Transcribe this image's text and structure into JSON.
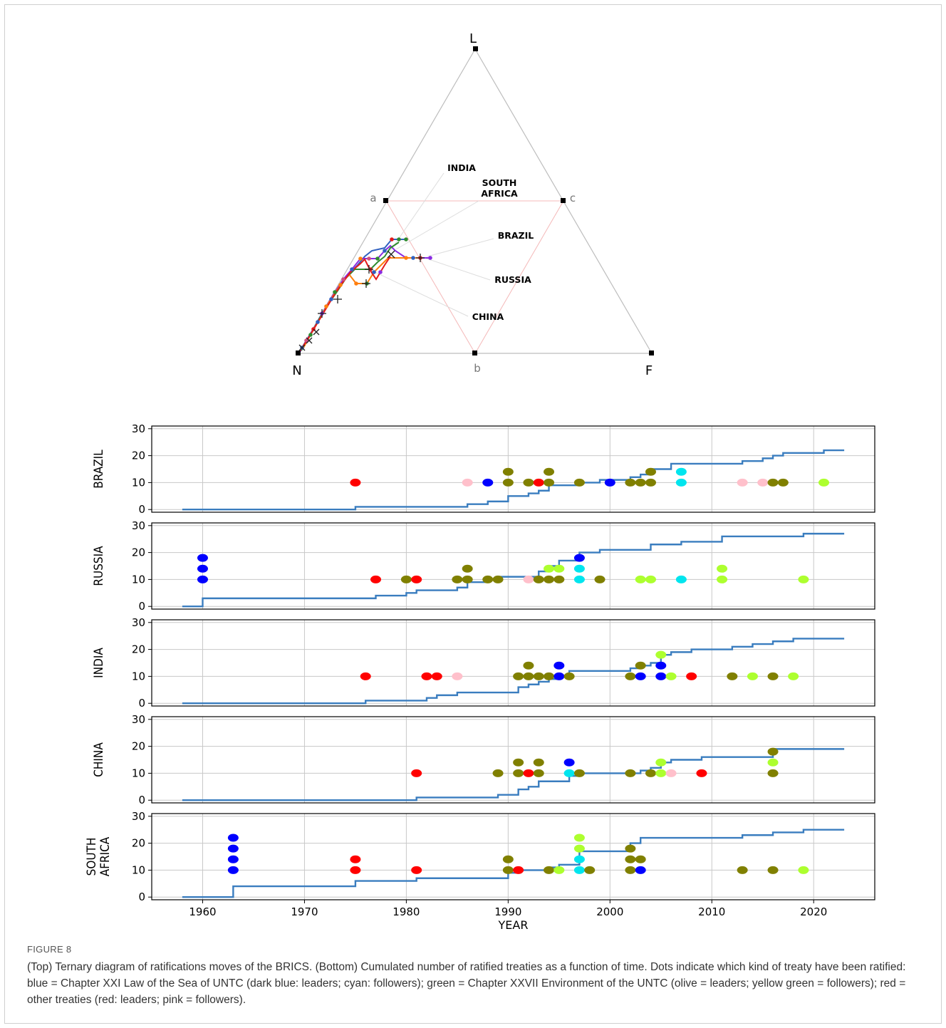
{
  "figure": {
    "label": "FIGURE 8",
    "caption": "(Top) Ternary diagram of ratifications moves of the BRICS. (Bottom) Cumulated number of ratified treaties as a function of time. Dots indicate which kind of treaty have been ratified: blue = Chapter XXI Law of the Sea of UNTC (dark blue: leaders; cyan: followers); green = Chapter XXVII Environment of the UNTC (olive = leaders; yellow green = followers); red = other treaties (red: leaders; pink = followers)."
  },
  "ternary": {
    "vertices": {
      "top": "L",
      "left": "N",
      "right": "F"
    },
    "midpoints": {
      "left": "a",
      "right": "c",
      "bottom": "b"
    },
    "labels": [
      "INDIA",
      "SOUTH AFRICA",
      "BRAZIL",
      "RUSSIA",
      "CHINA"
    ]
  },
  "chart_data": [
    {
      "type": "line",
      "ylabel": "BRAZIL",
      "xlim": [
        1955,
        2026
      ],
      "ylim": [
        -1,
        31
      ],
      "yticks": [
        0,
        10,
        20,
        30
      ],
      "steps": [
        [
          1958,
          0
        ],
        [
          1975,
          1
        ],
        [
          1986,
          2
        ],
        [
          1988,
          3
        ],
        [
          1990,
          5
        ],
        [
          1992,
          6
        ],
        [
          1993,
          7
        ],
        [
          1994,
          9
        ],
        [
          1997,
          10
        ],
        [
          1999,
          11
        ],
        [
          2001,
          11
        ],
        [
          2002,
          12
        ],
        [
          2003,
          13
        ],
        [
          2004,
          15
        ],
        [
          2006,
          17
        ],
        [
          2013,
          18
        ],
        [
          2015,
          19
        ],
        [
          2016,
          20
        ],
        [
          2017,
          21
        ],
        [
          2021,
          22
        ],
        [
          2023,
          22
        ]
      ],
      "dots": [
        {
          "year": 1975,
          "y": 10,
          "color": "red"
        },
        {
          "year": 1986,
          "y": 10,
          "color": "pink"
        },
        {
          "year": 1988,
          "y": 10,
          "color": "blue"
        },
        {
          "year": 1990,
          "y": 10,
          "color": "olive"
        },
        {
          "year": 1990,
          "y": 14,
          "color": "olive"
        },
        {
          "year": 1992,
          "y": 10,
          "color": "olive"
        },
        {
          "year": 1993,
          "y": 10,
          "color": "red"
        },
        {
          "year": 1994,
          "y": 10,
          "color": "olive"
        },
        {
          "year": 1994,
          "y": 14,
          "color": "olive"
        },
        {
          "year": 1997,
          "y": 10,
          "color": "olive"
        },
        {
          "year": 2000,
          "y": 10,
          "color": "blue"
        },
        {
          "year": 2002,
          "y": 10,
          "color": "olive"
        },
        {
          "year": 2003,
          "y": 10,
          "color": "olive"
        },
        {
          "year": 2004,
          "y": 10,
          "color": "olive"
        },
        {
          "year": 2004,
          "y": 14,
          "color": "olive"
        },
        {
          "year": 2007,
          "y": 10,
          "color": "cyan"
        },
        {
          "year": 2007,
          "y": 14,
          "color": "cyan"
        },
        {
          "year": 2013,
          "y": 10,
          "color": "pink"
        },
        {
          "year": 2015,
          "y": 10,
          "color": "pink"
        },
        {
          "year": 2016,
          "y": 10,
          "color": "olive"
        },
        {
          "year": 2017,
          "y": 10,
          "color": "olive"
        },
        {
          "year": 2021,
          "y": 10,
          "color": "yellowgreen"
        }
      ]
    },
    {
      "type": "line",
      "ylabel": "RUSSIA",
      "xlim": [
        1955,
        2026
      ],
      "ylim": [
        -1,
        31
      ],
      "yticks": [
        0,
        10,
        20,
        30
      ],
      "steps": [
        [
          1958,
          0
        ],
        [
          1959,
          0
        ],
        [
          1960,
          3
        ],
        [
          1976,
          3
        ],
        [
          1977,
          4
        ],
        [
          1979,
          4
        ],
        [
          1980,
          5
        ],
        [
          1981,
          6
        ],
        [
          1984,
          6
        ],
        [
          1985,
          7
        ],
        [
          1986,
          9
        ],
        [
          1988,
          10
        ],
        [
          1989,
          11
        ],
        [
          1991,
          11
        ],
        [
          1993,
          13
        ],
        [
          1994,
          15
        ],
        [
          1995,
          17
        ],
        [
          1996,
          17
        ],
        [
          1997,
          20
        ],
        [
          1999,
          21
        ],
        [
          2002,
          21
        ],
        [
          2004,
          23
        ],
        [
          2006,
          23
        ],
        [
          2007,
          24
        ],
        [
          2010,
          24
        ],
        [
          2011,
          26
        ],
        [
          2018,
          26
        ],
        [
          2019,
          27
        ],
        [
          2023,
          27
        ]
      ],
      "dots": [
        {
          "year": 1960,
          "y": 10,
          "color": "blue"
        },
        {
          "year": 1960,
          "y": 14,
          "color": "blue"
        },
        {
          "year": 1960,
          "y": 18,
          "color": "blue"
        },
        {
          "year": 1977,
          "y": 10,
          "color": "red"
        },
        {
          "year": 1980,
          "y": 10,
          "color": "olive"
        },
        {
          "year": 1981,
          "y": 10,
          "color": "red"
        },
        {
          "year": 1985,
          "y": 10,
          "color": "olive"
        },
        {
          "year": 1986,
          "y": 10,
          "color": "olive"
        },
        {
          "year": 1986,
          "y": 14,
          "color": "olive"
        },
        {
          "year": 1988,
          "y": 10,
          "color": "olive"
        },
        {
          "year": 1989,
          "y": 10,
          "color": "olive"
        },
        {
          "year": 1992,
          "y": 10,
          "color": "pink"
        },
        {
          "year": 1993,
          "y": 10,
          "color": "olive"
        },
        {
          "year": 1994,
          "y": 10,
          "color": "olive"
        },
        {
          "year": 1995,
          "y": 10,
          "color": "olive"
        },
        {
          "year": 1994,
          "y": 14,
          "color": "yellowgreen"
        },
        {
          "year": 1995,
          "y": 14,
          "color": "yellowgreen"
        },
        {
          "year": 1997,
          "y": 10,
          "color": "cyan"
        },
        {
          "year": 1997,
          "y": 14,
          "color": "cyan"
        },
        {
          "year": 1997,
          "y": 18,
          "color": "blue"
        },
        {
          "year": 1999,
          "y": 10,
          "color": "olive"
        },
        {
          "year": 2003,
          "y": 10,
          "color": "yellowgreen"
        },
        {
          "year": 2004,
          "y": 10,
          "color": "yellowgreen"
        },
        {
          "year": 2007,
          "y": 10,
          "color": "cyan"
        },
        {
          "year": 2011,
          "y": 10,
          "color": "yellowgreen"
        },
        {
          "year": 2011,
          "y": 14,
          "color": "yellowgreen"
        },
        {
          "year": 2019,
          "y": 10,
          "color": "yellowgreen"
        }
      ]
    },
    {
      "type": "line",
      "ylabel": "INDIA",
      "xlim": [
        1955,
        2026
      ],
      "ylim": [
        -1,
        31
      ],
      "yticks": [
        0,
        10,
        20,
        30
      ],
      "steps": [
        [
          1958,
          0
        ],
        [
          1975,
          0
        ],
        [
          1976,
          1
        ],
        [
          1981,
          1
        ],
        [
          1982,
          2
        ],
        [
          1983,
          3
        ],
        [
          1984,
          3
        ],
        [
          1985,
          4
        ],
        [
          1990,
          4
        ],
        [
          1991,
          6
        ],
        [
          1992,
          7
        ],
        [
          1993,
          8
        ],
        [
          1994,
          9
        ],
        [
          1995,
          10
        ],
        [
          1996,
          12
        ],
        [
          2001,
          12
        ],
        [
          2002,
          13
        ],
        [
          2003,
          14
        ],
        [
          2004,
          15
        ],
        [
          2005,
          18
        ],
        [
          2006,
          19
        ],
        [
          2007,
          19
        ],
        [
          2008,
          20
        ],
        [
          2011,
          20
        ],
        [
          2012,
          21
        ],
        [
          2013,
          21
        ],
        [
          2014,
          22
        ],
        [
          2015,
          22
        ],
        [
          2016,
          23
        ],
        [
          2017,
          23
        ],
        [
          2018,
          24
        ],
        [
          2023,
          24
        ]
      ],
      "dots": [
        {
          "year": 1976,
          "y": 10,
          "color": "red"
        },
        {
          "year": 1982,
          "y": 10,
          "color": "red"
        },
        {
          "year": 1983,
          "y": 10,
          "color": "red"
        },
        {
          "year": 1985,
          "y": 10,
          "color": "pink"
        },
        {
          "year": 1991,
          "y": 10,
          "color": "olive"
        },
        {
          "year": 1992,
          "y": 10,
          "color": "olive"
        },
        {
          "year": 1992,
          "y": 14,
          "color": "olive"
        },
        {
          "year": 1993,
          "y": 10,
          "color": "olive"
        },
        {
          "year": 1994,
          "y": 10,
          "color": "olive"
        },
        {
          "year": 1995,
          "y": 10,
          "color": "blue"
        },
        {
          "year": 1995,
          "y": 14,
          "color": "blue"
        },
        {
          "year": 1996,
          "y": 10,
          "color": "olive"
        },
        {
          "year": 2002,
          "y": 10,
          "color": "olive"
        },
        {
          "year": 2003,
          "y": 10,
          "color": "blue"
        },
        {
          "year": 2003,
          "y": 14,
          "color": "olive"
        },
        {
          "year": 2005,
          "y": 10,
          "color": "blue"
        },
        {
          "year": 2005,
          "y": 14,
          "color": "blue"
        },
        {
          "year": 2005,
          "y": 18,
          "color": "yellowgreen"
        },
        {
          "year": 2006,
          "y": 10,
          "color": "yellowgreen"
        },
        {
          "year": 2008,
          "y": 10,
          "color": "red"
        },
        {
          "year": 2012,
          "y": 10,
          "color": "olive"
        },
        {
          "year": 2014,
          "y": 10,
          "color": "yellowgreen"
        },
        {
          "year": 2016,
          "y": 10,
          "color": "olive"
        },
        {
          "year": 2018,
          "y": 10,
          "color": "yellowgreen"
        }
      ]
    },
    {
      "type": "line",
      "ylabel": "CHINA",
      "xlim": [
        1955,
        2026
      ],
      "ylim": [
        -1,
        31
      ],
      "yticks": [
        0,
        10,
        20,
        30
      ],
      "steps": [
        [
          1958,
          0
        ],
        [
          1980,
          0
        ],
        [
          1981,
          1
        ],
        [
          1988,
          1
        ],
        [
          1989,
          2
        ],
        [
          1990,
          2
        ],
        [
          1991,
          4
        ],
        [
          1992,
          5
        ],
        [
          1993,
          7
        ],
        [
          1995,
          7
        ],
        [
          1996,
          9
        ],
        [
          1997,
          10
        ],
        [
          2002,
          10
        ],
        [
          2003,
          11
        ],
        [
          2004,
          12
        ],
        [
          2005,
          14
        ],
        [
          2006,
          15
        ],
        [
          2008,
          15
        ],
        [
          2009,
          16
        ],
        [
          2015,
          16
        ],
        [
          2016,
          19
        ],
        [
          2023,
          19
        ]
      ],
      "dots": [
        {
          "year": 1981,
          "y": 10,
          "color": "red"
        },
        {
          "year": 1989,
          "y": 10,
          "color": "olive"
        },
        {
          "year": 1991,
          "y": 10,
          "color": "olive"
        },
        {
          "year": 1991,
          "y": 14,
          "color": "olive"
        },
        {
          "year": 1992,
          "y": 10,
          "color": "red"
        },
        {
          "year": 1993,
          "y": 10,
          "color": "olive"
        },
        {
          "year": 1993,
          "y": 14,
          "color": "olive"
        },
        {
          "year": 1996,
          "y": 10,
          "color": "cyan"
        },
        {
          "year": 1996,
          "y": 14,
          "color": "blue"
        },
        {
          "year": 1997,
          "y": 10,
          "color": "olive"
        },
        {
          "year": 2002,
          "y": 10,
          "color": "olive"
        },
        {
          "year": 2004,
          "y": 10,
          "color": "olive"
        },
        {
          "year": 2005,
          "y": 10,
          "color": "yellowgreen"
        },
        {
          "year": 2005,
          "y": 14,
          "color": "yellowgreen"
        },
        {
          "year": 2006,
          "y": 10,
          "color": "pink"
        },
        {
          "year": 2009,
          "y": 10,
          "color": "red"
        },
        {
          "year": 2016,
          "y": 10,
          "color": "olive"
        },
        {
          "year": 2016,
          "y": 14,
          "color": "yellowgreen"
        },
        {
          "year": 2016,
          "y": 18,
          "color": "olive"
        }
      ]
    },
    {
      "type": "line",
      "ylabel": "SOUTH AFRICA",
      "xlabel": "YEAR",
      "xlim": [
        1955,
        2026
      ],
      "ylim": [
        -1,
        31
      ],
      "yticks": [
        0,
        10,
        20,
        30
      ],
      "xticks": [
        1960,
        1970,
        1980,
        1990,
        2000,
        2010,
        2020
      ],
      "steps": [
        [
          1958,
          0
        ],
        [
          1962,
          0
        ],
        [
          1963,
          4
        ],
        [
          1974,
          4
        ],
        [
          1975,
          6
        ],
        [
          1980,
          6
        ],
        [
          1981,
          7
        ],
        [
          1989,
          7
        ],
        [
          1990,
          9
        ],
        [
          1991,
          10
        ],
        [
          1993,
          10
        ],
        [
          1994,
          11
        ],
        [
          1995,
          12
        ],
        [
          1996,
          12
        ],
        [
          1997,
          17
        ],
        [
          2001,
          17
        ],
        [
          2002,
          20
        ],
        [
          2003,
          22
        ],
        [
          2012,
          22
        ],
        [
          2013,
          23
        ],
        [
          2015,
          23
        ],
        [
          2016,
          24
        ],
        [
          2018,
          24
        ],
        [
          2019,
          25
        ],
        [
          2023,
          25
        ]
      ],
      "dots": [
        {
          "year": 1963,
          "y": 10,
          "color": "blue"
        },
        {
          "year": 1963,
          "y": 14,
          "color": "blue"
        },
        {
          "year": 1963,
          "y": 18,
          "color": "blue"
        },
        {
          "year": 1963,
          "y": 22,
          "color": "blue"
        },
        {
          "year": 1975,
          "y": 10,
          "color": "red"
        },
        {
          "year": 1975,
          "y": 14,
          "color": "red"
        },
        {
          "year": 1981,
          "y": 10,
          "color": "red"
        },
        {
          "year": 1990,
          "y": 10,
          "color": "olive"
        },
        {
          "year": 1990,
          "y": 14,
          "color": "olive"
        },
        {
          "year": 1991,
          "y": 10,
          "color": "red"
        },
        {
          "year": 1994,
          "y": 10,
          "color": "olive"
        },
        {
          "year": 1995,
          "y": 10,
          "color": "yellowgreen"
        },
        {
          "year": 1997,
          "y": 10,
          "color": "cyan"
        },
        {
          "year": 1997,
          "y": 14,
          "color": "cyan"
        },
        {
          "year": 1997,
          "y": 18,
          "color": "yellowgreen"
        },
        {
          "year": 1997,
          "y": 22,
          "color": "yellowgreen"
        },
        {
          "year": 1998,
          "y": 10,
          "color": "olive"
        },
        {
          "year": 2002,
          "y": 10,
          "color": "olive"
        },
        {
          "year": 2002,
          "y": 14,
          "color": "olive"
        },
        {
          "year": 2002,
          "y": 18,
          "color": "olive"
        },
        {
          "year": 2003,
          "y": 10,
          "color": "blue"
        },
        {
          "year": 2003,
          "y": 14,
          "color": "olive"
        },
        {
          "year": 2013,
          "y": 10,
          "color": "olive"
        },
        {
          "year": 2016,
          "y": 10,
          "color": "olive"
        },
        {
          "year": 2019,
          "y": 10,
          "color": "yellowgreen"
        }
      ]
    }
  ],
  "colors": {
    "line": "#3a7dbf",
    "blue": "#0000ff",
    "cyan": "#00e5ee",
    "olive": "#808000",
    "yellowgreen": "#adff2f",
    "red": "#ff0000",
    "pink": "#ffc0cb",
    "grid": "#c8c8c8"
  }
}
